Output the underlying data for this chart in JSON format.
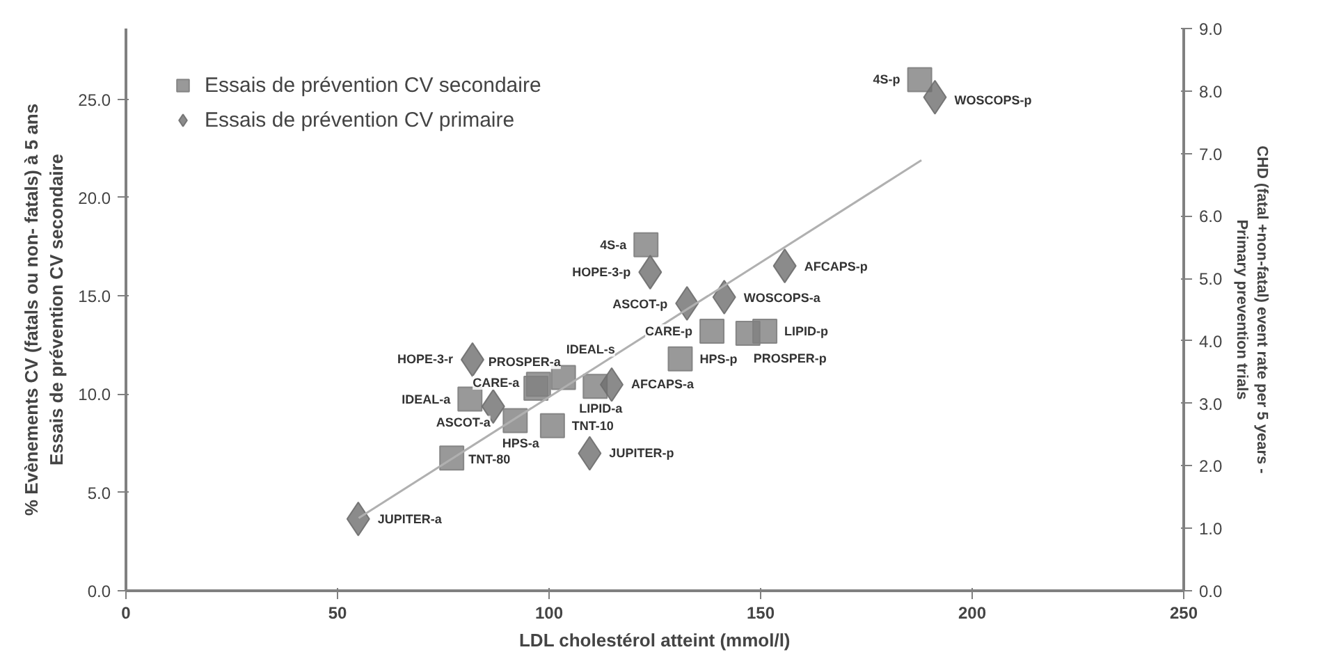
{
  "chart_data": {
    "type": "scatter",
    "xlabel": "LDL cholestérol atteint (mmol/l)",
    "ylabel": "% Evènements CV (fatals ou non- fatals) à 5 ans\nEssais de prévention CV secondaire",
    "y2label": "CHD (fatal +non-fatal) event rate per 5 years -\nPrimary prevention trials",
    "xlim": [
      0,
      250
    ],
    "xticks": [
      0,
      50,
      100,
      150,
      200,
      250
    ],
    "ylim": [
      0,
      28.6
    ],
    "yticks": [
      {
        "value": 0,
        "label": "0.0"
      },
      {
        "value": 5,
        "label": "5.0"
      },
      {
        "value": 10,
        "label": "10.0"
      },
      {
        "value": 15,
        "label": "15.0"
      },
      {
        "value": 20,
        "label": "20.0"
      },
      {
        "value": 25,
        "label": "25.0"
      }
    ],
    "y2lim": [
      0,
      9
    ],
    "y2ticks": [
      {
        "value": 0,
        "label": "0.0"
      },
      {
        "value": 1,
        "label": "1.0"
      },
      {
        "value": 2,
        "label": "2.0"
      },
      {
        "value": 3,
        "label": "3.0"
      },
      {
        "value": 4,
        "label": "4.0"
      },
      {
        "value": 5,
        "label": "5.0"
      },
      {
        "value": 6,
        "label": "6.0"
      },
      {
        "value": 7,
        "label": "7.0"
      },
      {
        "value": 8,
        "label": "8.0"
      },
      {
        "value": 9,
        "label": "9.0"
      }
    ],
    "grid": false,
    "legend": "top left",
    "series": [
      {
        "name": "Essais de prévention CV secondaire",
        "color": "#808080",
        "marker": "square",
        "x": [
          187.6,
          122.9,
          138.5,
          151,
          147,
          131,
          103.4,
          96.9,
          97.5,
          110.9,
          81.3,
          92,
          100.8,
          77
        ],
        "values": [
          26.0,
          17.6,
          13.2,
          13.2,
          13.1,
          11.8,
          10.85,
          10.3,
          10.5,
          10.4,
          9.75,
          8.65,
          8.4,
          6.75
        ]
      },
      {
        "name": "Essais de prévention CV primaire",
        "color": "#6e6e6e",
        "marker": "diamond",
        "axis": "y2",
        "x": [
          191.2,
          155.7,
          123.9,
          141.4,
          132.6,
          81.9,
          86.8,
          114.8,
          109.6,
          54.9
        ],
        "values": [
          7.9,
          5.2,
          5.1,
          4.7,
          4.6,
          3.7,
          2.95,
          3.3,
          2.2,
          1.15
        ]
      },
      {
        "type": "line",
        "color": "#b0b0b0",
        "x": [
          55,
          188
        ],
        "values": [
          3.7,
          21.9
        ]
      }
    ],
    "annotations": [
      {
        "text": "4S-p",
        "x": 187.6,
        "y": 26.0
      },
      {
        "text": "WOSCOPS-p",
        "x": 191.2,
        "y": 25.1
      },
      {
        "text": "4S-a",
        "x": 122.9,
        "y": 17.6
      },
      {
        "text": "HOPE-3-p",
        "x": 123.9,
        "y": 16.2
      },
      {
        "text": "AFCAPS-p",
        "x": 155.7,
        "y": 16.5
      },
      {
        "text": "ASCOT-p",
        "x": 132.6,
        "y": 14.6
      },
      {
        "text": "WOSCOPS-a",
        "x": 141.4,
        "y": 14.9
      },
      {
        "text": "CARE-p",
        "x": 138.5,
        "y": 13.2
      },
      {
        "text": "LIPID-p",
        "x": 151,
        "y": 13.2
      },
      {
        "text": "PROSPER-p",
        "x": 147,
        "y": 13.1
      },
      {
        "text": "HPS-p",
        "x": 131,
        "y": 11.8
      },
      {
        "text": "IDEAL-s",
        "x": 103.4,
        "y": 10.85
      },
      {
        "text": "PROSPER-a",
        "x": 97.5,
        "y": 10.5
      },
      {
        "text": "HOPE-3-r",
        "x": 81.9,
        "y": 11.8
      },
      {
        "text": "CARE-a",
        "x": 96.9,
        "y": 10.3
      },
      {
        "text": "IDEAL-a",
        "x": 81.3,
        "y": 9.75
      },
      {
        "text": "LIPID-a",
        "x": 110.9,
        "y": 10.4
      },
      {
        "text": "AFCAPS-a",
        "x": 114.8,
        "y": 10.5
      },
      {
        "text": "ASCOT-a",
        "x": 86.8,
        "y": 9.4
      },
      {
        "text": "HPS-a",
        "x": 92,
        "y": 8.65
      },
      {
        "text": "TNT-10",
        "x": 100.8,
        "y": 8.4
      },
      {
        "text": "TNT-80",
        "x": 77,
        "y": 6.75
      },
      {
        "text": "JUPITER-p",
        "x": 109.6,
        "y": 7.0
      },
      {
        "text": "JUPITER-a",
        "x": 54.9,
        "y": 3.65
      }
    ]
  }
}
